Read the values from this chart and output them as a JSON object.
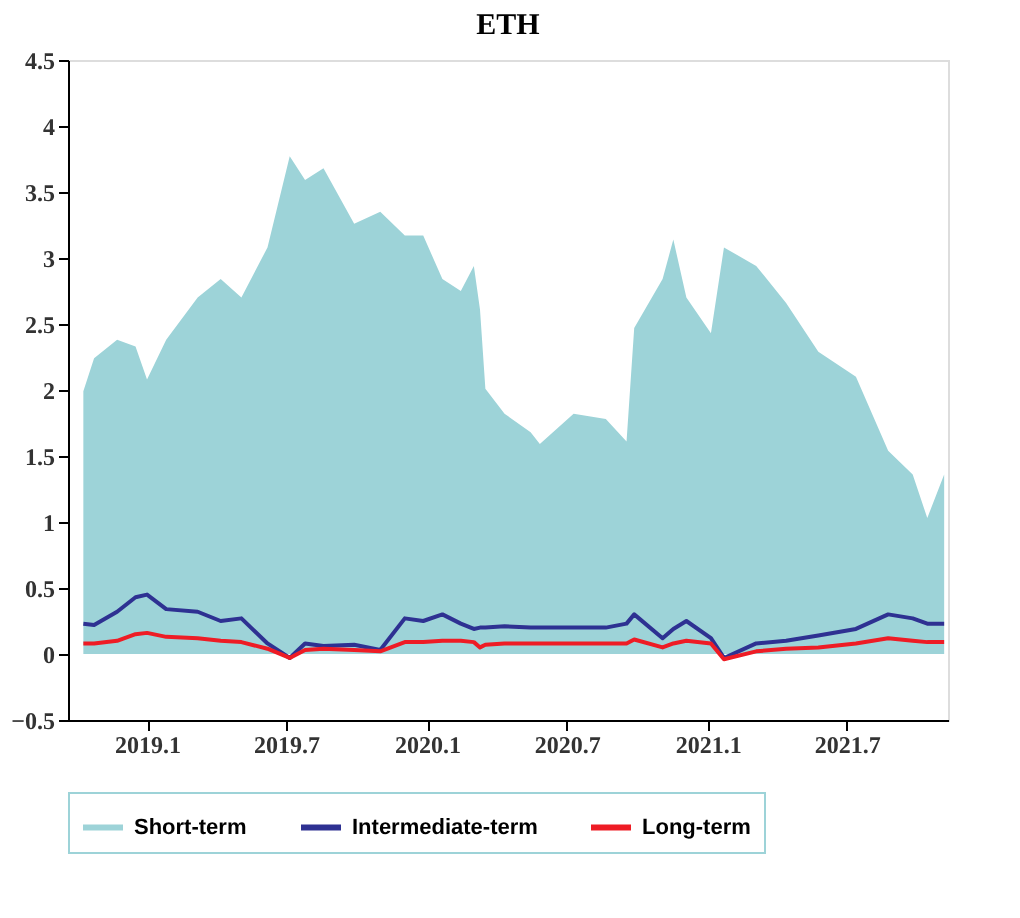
{
  "chart_data": {
    "type": "line",
    "title": "ETH",
    "x": [
      "2018-10-10",
      "2018-10-24",
      "2018-11-23",
      "2018-12-17",
      "2019-01-01",
      "2019-01-26",
      "2019-03-08",
      "2019-04-07",
      "2019-05-04",
      "2019-06-07",
      "2019-07-06",
      "2019-07-26",
      "2019-08-19",
      "2019-09-28",
      "2019-11-01",
      "2019-12-03",
      "2019-12-27",
      "2020-01-21",
      "2020-02-14",
      "2020-03-02",
      "2020-03-10",
      "2020-03-17",
      "2020-04-11",
      "2020-05-15",
      "2020-05-27",
      "2020-07-10",
      "2020-08-21",
      "2020-09-17",
      "2020-09-27",
      "2020-11-03",
      "2020-11-17",
      "2020-12-04",
      "2021-01-05",
      "2021-01-22",
      "2021-03-05",
      "2021-04-13",
      "2021-05-25",
      "2021-07-13",
      "2021-08-24",
      "2021-09-25",
      "2021-10-14",
      "2021-11-05"
    ],
    "series": [
      {
        "name": "Short-term",
        "type": "area",
        "color": "#9dd3d8",
        "values": [
          1.99,
          2.24,
          2.38,
          2.33,
          2.08,
          2.38,
          2.7,
          2.84,
          2.7,
          3.08,
          3.77,
          3.59,
          3.68,
          3.26,
          3.35,
          3.17,
          3.17,
          2.84,
          2.75,
          2.94,
          2.61,
          2.01,
          1.82,
          1.68,
          1.59,
          1.82,
          1.78,
          1.61,
          2.47,
          2.84,
          3.14,
          2.7,
          2.43,
          3.08,
          2.94,
          2.66,
          2.29,
          2.1,
          1.54,
          1.36,
          1.03,
          1.36
        ]
      },
      {
        "name": "Intermediate-term",
        "color": "#2e3192",
        "values": [
          0.23,
          0.22,
          0.32,
          0.43,
          0.45,
          0.34,
          0.32,
          0.25,
          0.27,
          0.08,
          -0.03,
          0.08,
          0.06,
          0.07,
          0.03,
          0.27,
          0.25,
          0.3,
          0.23,
          0.19,
          0.2,
          0.2,
          0.21,
          0.2,
          0.2,
          0.2,
          0.2,
          0.23,
          0.3,
          0.12,
          0.19,
          0.25,
          0.12,
          -0.03,
          0.08,
          0.1,
          0.14,
          0.19,
          0.3,
          0.27,
          0.23,
          0.23
        ]
      },
      {
        "name": "Long-term",
        "color": "#ee1c25",
        "values": [
          0.08,
          0.08,
          0.1,
          0.15,
          0.16,
          0.13,
          0.12,
          0.1,
          0.09,
          0.04,
          -0.03,
          0.03,
          0.04,
          0.03,
          0.02,
          0.09,
          0.09,
          0.1,
          0.1,
          0.09,
          0.05,
          0.07,
          0.08,
          0.08,
          0.08,
          0.08,
          0.08,
          0.08,
          0.11,
          0.05,
          0.08,
          0.1,
          0.08,
          -0.04,
          0.02,
          0.04,
          0.05,
          0.08,
          0.12,
          0.1,
          0.09,
          0.09
        ]
      }
    ],
    "xlim": [
      "2018-09-20",
      "2021-11-10"
    ],
    "xticks": [
      {
        "value": "2019-01-01",
        "label": "2019.1"
      },
      {
        "value": "2019-07-01",
        "label": "2019.7"
      },
      {
        "value": "2020-01-01",
        "label": "2020.1"
      },
      {
        "value": "2020-07-01",
        "label": "2020.7"
      },
      {
        "value": "2021-01-01",
        "label": "2021.1"
      },
      {
        "value": "2021-07-01",
        "label": "2021.7"
      }
    ],
    "ylim": [
      -0.5,
      4.5
    ],
    "yticks": [
      -0.5,
      0,
      0.5,
      1,
      1.5,
      2,
      2.5,
      3,
      3.5,
      4,
      4.5
    ],
    "grid": false,
    "legend": "bottom"
  }
}
